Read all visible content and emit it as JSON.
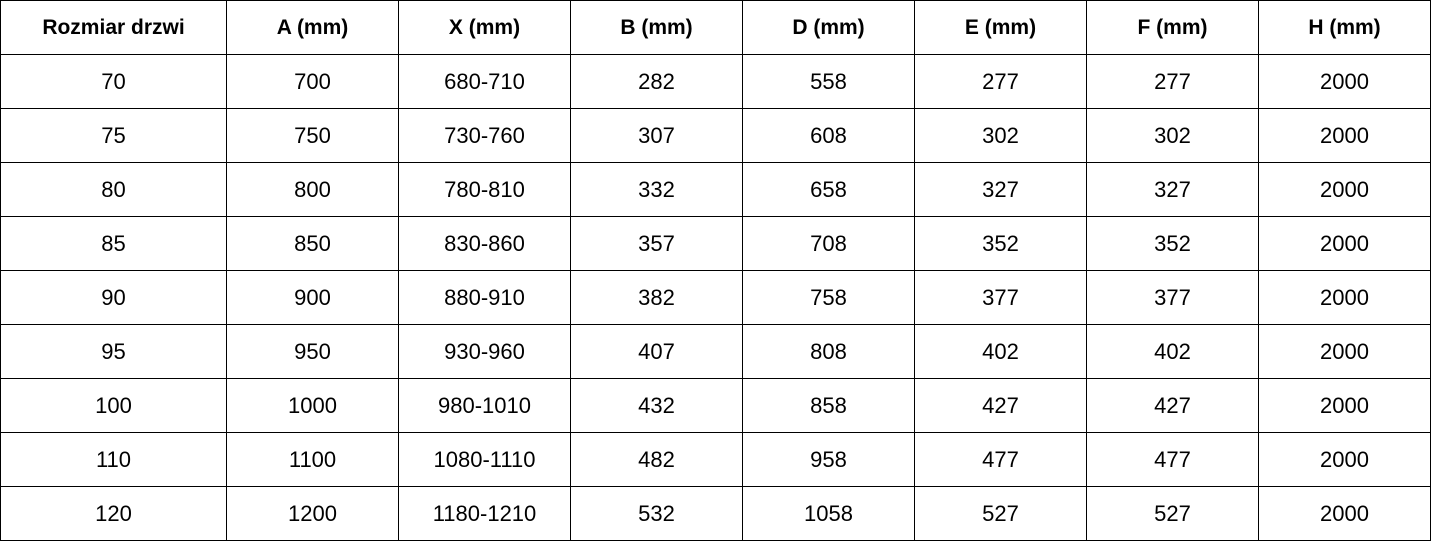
{
  "table": {
    "headers": [
      "Rozmiar drzwi",
      "A (mm)",
      "X (mm)",
      "B (mm)",
      "D (mm)",
      "E (mm)",
      "F (mm)",
      "H (mm)"
    ],
    "rows": [
      [
        "70",
        "700",
        "680-710",
        "282",
        "558",
        "277",
        "277",
        "2000"
      ],
      [
        "75",
        "750",
        "730-760",
        "307",
        "608",
        "302",
        "302",
        "2000"
      ],
      [
        "80",
        "800",
        "780-810",
        "332",
        "658",
        "327",
        "327",
        "2000"
      ],
      [
        "85",
        "850",
        "830-860",
        "357",
        "708",
        "352",
        "352",
        "2000"
      ],
      [
        "90",
        "900",
        "880-910",
        "382",
        "758",
        "377",
        "377",
        "2000"
      ],
      [
        "95",
        "950",
        "930-960",
        "407",
        "808",
        "402",
        "402",
        "2000"
      ],
      [
        "100",
        "1000",
        "980-1010",
        "432",
        "858",
        "427",
        "427",
        "2000"
      ],
      [
        "110",
        "1100",
        "1080-1110",
        "482",
        "958",
        "477",
        "477",
        "2000"
      ],
      [
        "120",
        "1200",
        "1180-1210",
        "532",
        "1058",
        "527",
        "527",
        "2000"
      ]
    ]
  }
}
